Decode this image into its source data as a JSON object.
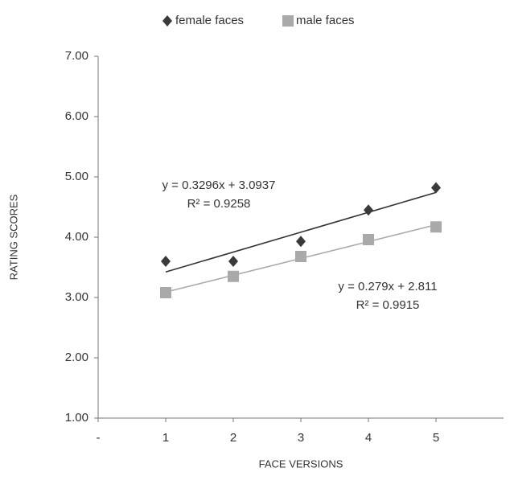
{
  "chart_data": {
    "type": "scatter",
    "x_label": "FACE VERSIONS",
    "y_label": "RATING SCORES",
    "x": [
      1,
      2,
      3,
      4,
      5
    ],
    "series": [
      {
        "name": "female faces",
        "color": "#3a3a3a",
        "marker": "diamond",
        "values": [
          3.6,
          3.6,
          3.93,
          4.45,
          4.82
        ],
        "trendline": {
          "slope": 0.3296,
          "intercept": 3.0937,
          "color": "#333333",
          "equation": "y = 0.3296x + 3.0937",
          "r2": "R² = 0.9258"
        }
      },
      {
        "name": "male faces",
        "color": "#a9a9a9",
        "marker": "square",
        "values": [
          3.08,
          3.35,
          3.68,
          3.96,
          4.17
        ],
        "trendline": {
          "slope": 0.279,
          "intercept": 2.811,
          "color": "#aaaaaa",
          "equation": "y = 0.279x + 2.811",
          "r2": "R² = 0.9915"
        }
      }
    ],
    "xlim": [
      0,
      6
    ],
    "xticks": [
      {
        "value": 0,
        "label": "-"
      },
      1,
      2,
      3,
      4,
      5
    ],
    "ylim": [
      1,
      7
    ],
    "yticks": [
      {
        "value": 1,
        "label": "1.00"
      },
      {
        "value": 2,
        "label": "2.00"
      },
      {
        "value": 3,
        "label": "3.00"
      },
      {
        "value": 4,
        "label": "4.00"
      },
      {
        "value": 5,
        "label": "5.00"
      },
      {
        "value": 6,
        "label": "6.00"
      },
      {
        "value": 7,
        "label": "7.00"
      }
    ],
    "grid": false,
    "legend": "top"
  }
}
